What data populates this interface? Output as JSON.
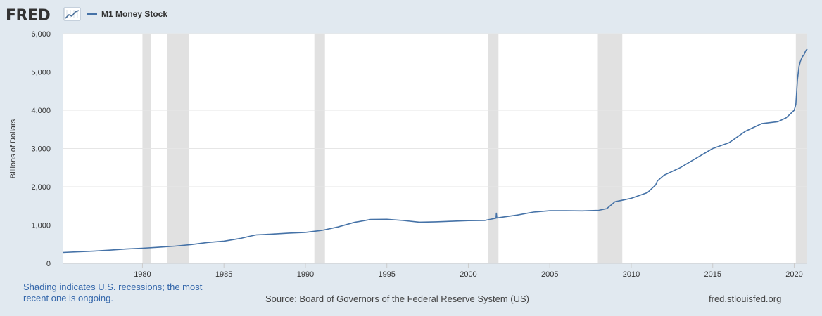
{
  "brand": {
    "name": "FRED",
    "logo_icon": "fred-trend-graph-icon"
  },
  "legend": {
    "label": "M1 Money Stock",
    "color": "#4572a7"
  },
  "footer": {
    "recession_note_line1": "Shading indicates U.S. recessions; the most",
    "recession_note_line2": "recent one is ongoing.",
    "source": "Source: Board of Governors of the Federal Reserve System (US)",
    "site": "fred.stlouisfed.org"
  },
  "chart_data": {
    "type": "line",
    "title": "",
    "ylabel": "Billions of Dollars",
    "xlabel": "",
    "xlim": [
      1975.1,
      2020.8
    ],
    "ylim": [
      0,
      6000
    ],
    "x_ticks": [
      1980,
      1985,
      1990,
      1995,
      2000,
      2005,
      2010,
      2015,
      2020
    ],
    "y_ticks": [
      0,
      1000,
      2000,
      3000,
      4000,
      5000,
      6000
    ],
    "y_tick_labels": [
      "0",
      "1,000",
      "2,000",
      "3,000",
      "4,000",
      "5,000",
      "6,000"
    ],
    "grid": "horizontal",
    "line_color": "#4572a7",
    "recession_color": "#e1e1e1",
    "recessions": [
      [
        1980.0,
        1980.5
      ],
      [
        1981.5,
        1982.85
      ],
      [
        1990.55,
        1991.2
      ],
      [
        2001.2,
        2001.85
      ],
      [
        2007.95,
        2009.45
      ],
      [
        2020.1,
        2020.8
      ]
    ],
    "series": [
      {
        "x": [
          1975.1,
          1976,
          1977,
          1978,
          1979,
          1980,
          1981,
          1982,
          1983,
          1984,
          1985,
          1986,
          1986.5,
          1987,
          1987.5,
          1988,
          1989,
          1990,
          1991,
          1992,
          1993,
          1994,
          1995,
          1996,
          1997,
          1998,
          1999,
          2000,
          2001,
          2001.7,
          2001.72,
          2001.75,
          2002,
          2003,
          2004,
          2005,
          2006,
          2007,
          2008,
          2008.5,
          2009,
          2010,
          2011,
          2011.5,
          2011.6,
          2012,
          2013,
          2014,
          2015,
          2016,
          2017,
          2018,
          2019,
          2019.5,
          2020.0,
          2020.1,
          2020.2,
          2020.3,
          2020.4,
          2020.5,
          2020.6,
          2020.7,
          2020.8
        ],
        "y": [
          285,
          300,
          320,
          345,
          375,
          395,
          420,
          450,
          490,
          545,
          580,
          650,
          700,
          745,
          755,
          765,
          790,
          810,
          860,
          950,
          1070,
          1145,
          1150,
          1120,
          1075,
          1085,
          1100,
          1115,
          1120,
          1180,
          1310,
          1185,
          1200,
          1260,
          1340,
          1375,
          1375,
          1370,
          1385,
          1430,
          1610,
          1700,
          1850,
          2050,
          2150,
          2300,
          2500,
          2750,
          3000,
          3150,
          3450,
          3650,
          3700,
          3800,
          4000,
          4150,
          4800,
          5150,
          5300,
          5400,
          5450,
          5550,
          5600
        ]
      }
    ]
  }
}
